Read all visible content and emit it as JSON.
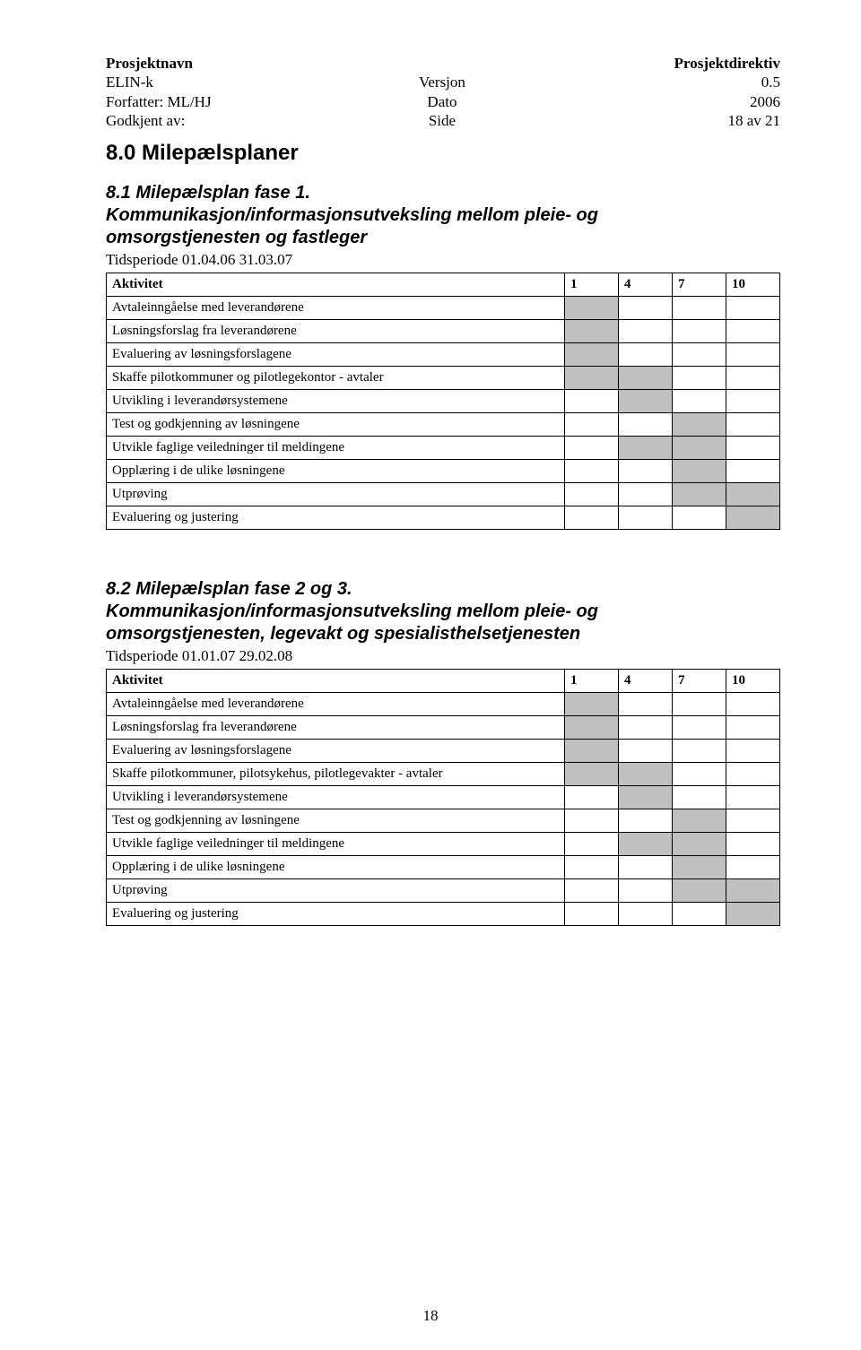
{
  "header": {
    "left": [
      "Prosjektnavn",
      "ELIN-k",
      "Forfatter: ML/HJ",
      "Godkjent av:"
    ],
    "center": [
      "",
      "Versjon",
      "Dato",
      "Side"
    ],
    "right": [
      "Prosjektdirektiv",
      "0.5",
      "2006",
      "18 av 21"
    ]
  },
  "h1": "8.0 Milepælsplaner",
  "section1": {
    "title_line1": "8.1 Milepælsplan fase 1.",
    "title_line2": "Kommunikasjon/informasjonsutveksling mellom pleie- og",
    "title_line3": "omsorgstjenesten og fastleger",
    "period": "Tidsperiode 01.04.06   31.03.07",
    "col_label": "Aktivitet",
    "cols": [
      "1",
      "4",
      "7",
      "10"
    ],
    "rows": [
      {
        "label": "Avtaleinngåelse med leverandørene",
        "shade": [
          true,
          false,
          false,
          false
        ]
      },
      {
        "label": "Løsningsforslag fra leverandørene",
        "shade": [
          true,
          false,
          false,
          false
        ]
      },
      {
        "label": "Evaluering av løsningsforslagene",
        "shade": [
          true,
          false,
          false,
          false
        ]
      },
      {
        "label": "Skaffe pilotkommuner og pilotlegekontor - avtaler",
        "shade": [
          true,
          true,
          false,
          false
        ]
      },
      {
        "label": "Utvikling i leverandørsystemene",
        "shade": [
          false,
          true,
          false,
          false
        ]
      },
      {
        "label": "Test og godkjenning av løsningene",
        "shade": [
          false,
          false,
          true,
          false
        ]
      },
      {
        "label": "Utvikle faglige veiledninger til meldingene",
        "shade": [
          false,
          true,
          true,
          false
        ]
      },
      {
        "label": "Opplæring i de ulike løsningene",
        "shade": [
          false,
          false,
          true,
          false
        ]
      },
      {
        "label": "Utprøving",
        "shade": [
          false,
          false,
          true,
          true
        ]
      },
      {
        "label": "Evaluering og justering",
        "shade": [
          false,
          false,
          false,
          true
        ]
      }
    ]
  },
  "section2": {
    "title_line1": "8.2 Milepælsplan fase 2 og 3.",
    "title_line2": "Kommunikasjon/informasjonsutveksling mellom pleie- og",
    "title_line3": "omsorgstjenesten, legevakt og spesialisthelsetjenesten",
    "period": "Tidsperiode 01.01.07   29.02.08",
    "col_label": "Aktivitet",
    "cols": [
      "1",
      "4",
      "7",
      "10"
    ],
    "rows": [
      {
        "label": "Avtaleinngåelse med leverandørene",
        "shade": [
          true,
          false,
          false,
          false
        ]
      },
      {
        "label": "Løsningsforslag fra leverandørene",
        "shade": [
          true,
          false,
          false,
          false
        ]
      },
      {
        "label": "Evaluering av løsningsforslagene",
        "shade": [
          true,
          false,
          false,
          false
        ]
      },
      {
        "label": "Skaffe pilotkommuner, pilotsykehus, pilotlegevakter - avtaler",
        "shade": [
          true,
          true,
          false,
          false
        ]
      },
      {
        "label": "Utvikling i leverandørsystemene",
        "shade": [
          false,
          true,
          false,
          false
        ]
      },
      {
        "label": "Test og godkjenning av løsningene",
        "shade": [
          false,
          false,
          true,
          false
        ]
      },
      {
        "label": "Utvikle faglige veiledninger til meldingene",
        "shade": [
          false,
          true,
          true,
          false
        ]
      },
      {
        "label": "Opplæring i de ulike løsningene",
        "shade": [
          false,
          false,
          true,
          false
        ]
      },
      {
        "label": "Utprøving",
        "shade": [
          false,
          false,
          true,
          true
        ]
      },
      {
        "label": "Evaluering og justering",
        "shade": [
          false,
          false,
          false,
          true
        ]
      }
    ]
  },
  "page_number": "18",
  "style": {
    "shaded_color": "#c0c0c0",
    "border_color": "#000000",
    "font_body": "Times New Roman",
    "font_heading": "Arial"
  }
}
